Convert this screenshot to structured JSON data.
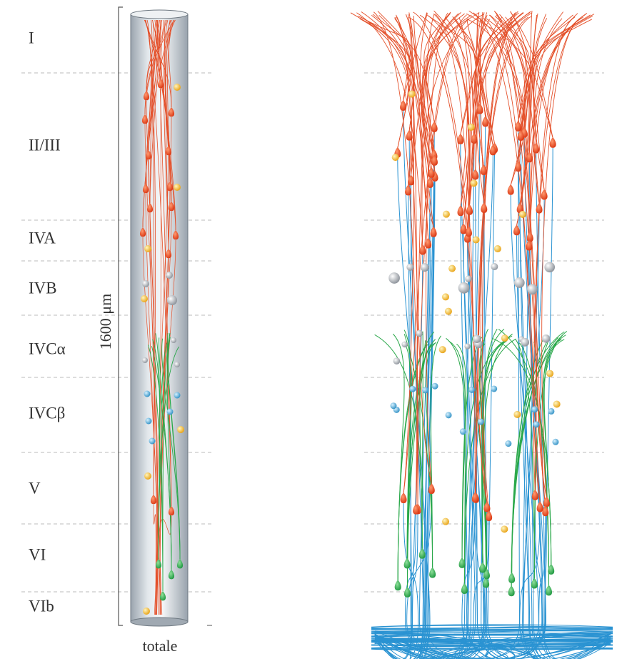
{
  "layers": [
    "I",
    "II/III",
    "IVA",
    "IVB",
    "IVCα",
    "IVCβ",
    "V",
    "VI",
    "VIb"
  ],
  "scale_label": "1600 μm",
  "caption": "totale"
}
